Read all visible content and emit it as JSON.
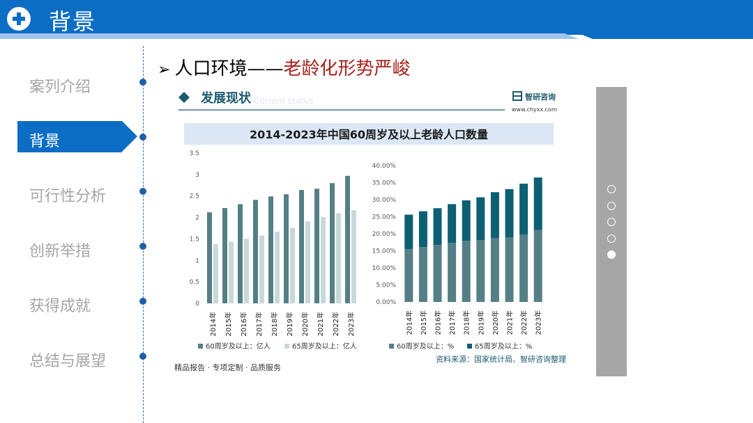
{
  "header": {
    "title": "背景"
  },
  "nav": {
    "items": [
      {
        "label": "案列介绍",
        "active": false
      },
      {
        "label": "背景",
        "active": true
      },
      {
        "label": "可行性分析",
        "active": false
      },
      {
        "label": "创新举措",
        "active": false
      },
      {
        "label": "获得成就",
        "active": false
      },
      {
        "label": "总结与展望",
        "active": false
      }
    ]
  },
  "subtitle": {
    "lead": "人口环境——",
    "highlight": "老龄化形势严峻"
  },
  "figure_header": {
    "section_title": "发展现状",
    "ghost_text": "Current status",
    "brand_name": "智研咨询",
    "brand_url": "www.chyxx.com"
  },
  "footer": {
    "left": "精品报告 · 专项定制 · 品质服务",
    "source": "资料来源：国家统计局、智研咨询整理"
  },
  "colors": {
    "primary": "#0b6dc4",
    "dark": "#557f86",
    "light": "#c7d9da",
    "teal": "#0d5f73",
    "red": "#a8201a"
  },
  "chart_data": [
    {
      "type": "bar",
      "title": "2014-2023年中国60周岁及以上老龄人口数量",
      "categories": [
        "2014年",
        "2015年",
        "2016年",
        "2017年",
        "2018年",
        "2019年",
        "2020年",
        "2021年",
        "2022年",
        "2023年"
      ],
      "yticks": [
        "0",
        "0.5",
        "1",
        "1.5",
        "2",
        "2.5",
        "3",
        "3.5"
      ],
      "ylim": [
        0,
        3.5
      ],
      "series": [
        {
          "name": "60周岁及以上：亿人",
          "values": [
            2.12,
            2.22,
            2.31,
            2.41,
            2.49,
            2.54,
            2.64,
            2.67,
            2.8,
            2.97
          ]
        },
        {
          "name": "65周岁及以上：亿人",
          "values": [
            1.38,
            1.44,
            1.5,
            1.58,
            1.67,
            1.76,
            1.91,
            2.01,
            2.1,
            2.17
          ]
        }
      ]
    },
    {
      "type": "stacked-bar",
      "categories": [
        "2014年",
        "2015年",
        "2016年",
        "2017年",
        "2018年",
        "2019年",
        "2020年",
        "2021年",
        "2022年",
        "2023年"
      ],
      "yticks": [
        "0.00%",
        "5.00%",
        "10.00%",
        "15.00%",
        "20.00%",
        "25.00%",
        "30.00%",
        "35.00%",
        "40.00%"
      ],
      "ylim": [
        0,
        40
      ],
      "series": [
        {
          "name": "60周岁及以上：%",
          "values": [
            15.5,
            16.1,
            16.7,
            17.3,
            17.9,
            18.1,
            18.7,
            18.9,
            19.8,
            21.1
          ]
        },
        {
          "name": "65周岁及以上：%",
          "values": [
            10.1,
            10.5,
            10.8,
            11.4,
            11.9,
            12.6,
            13.5,
            14.2,
            14.9,
            15.4
          ]
        }
      ]
    }
  ]
}
